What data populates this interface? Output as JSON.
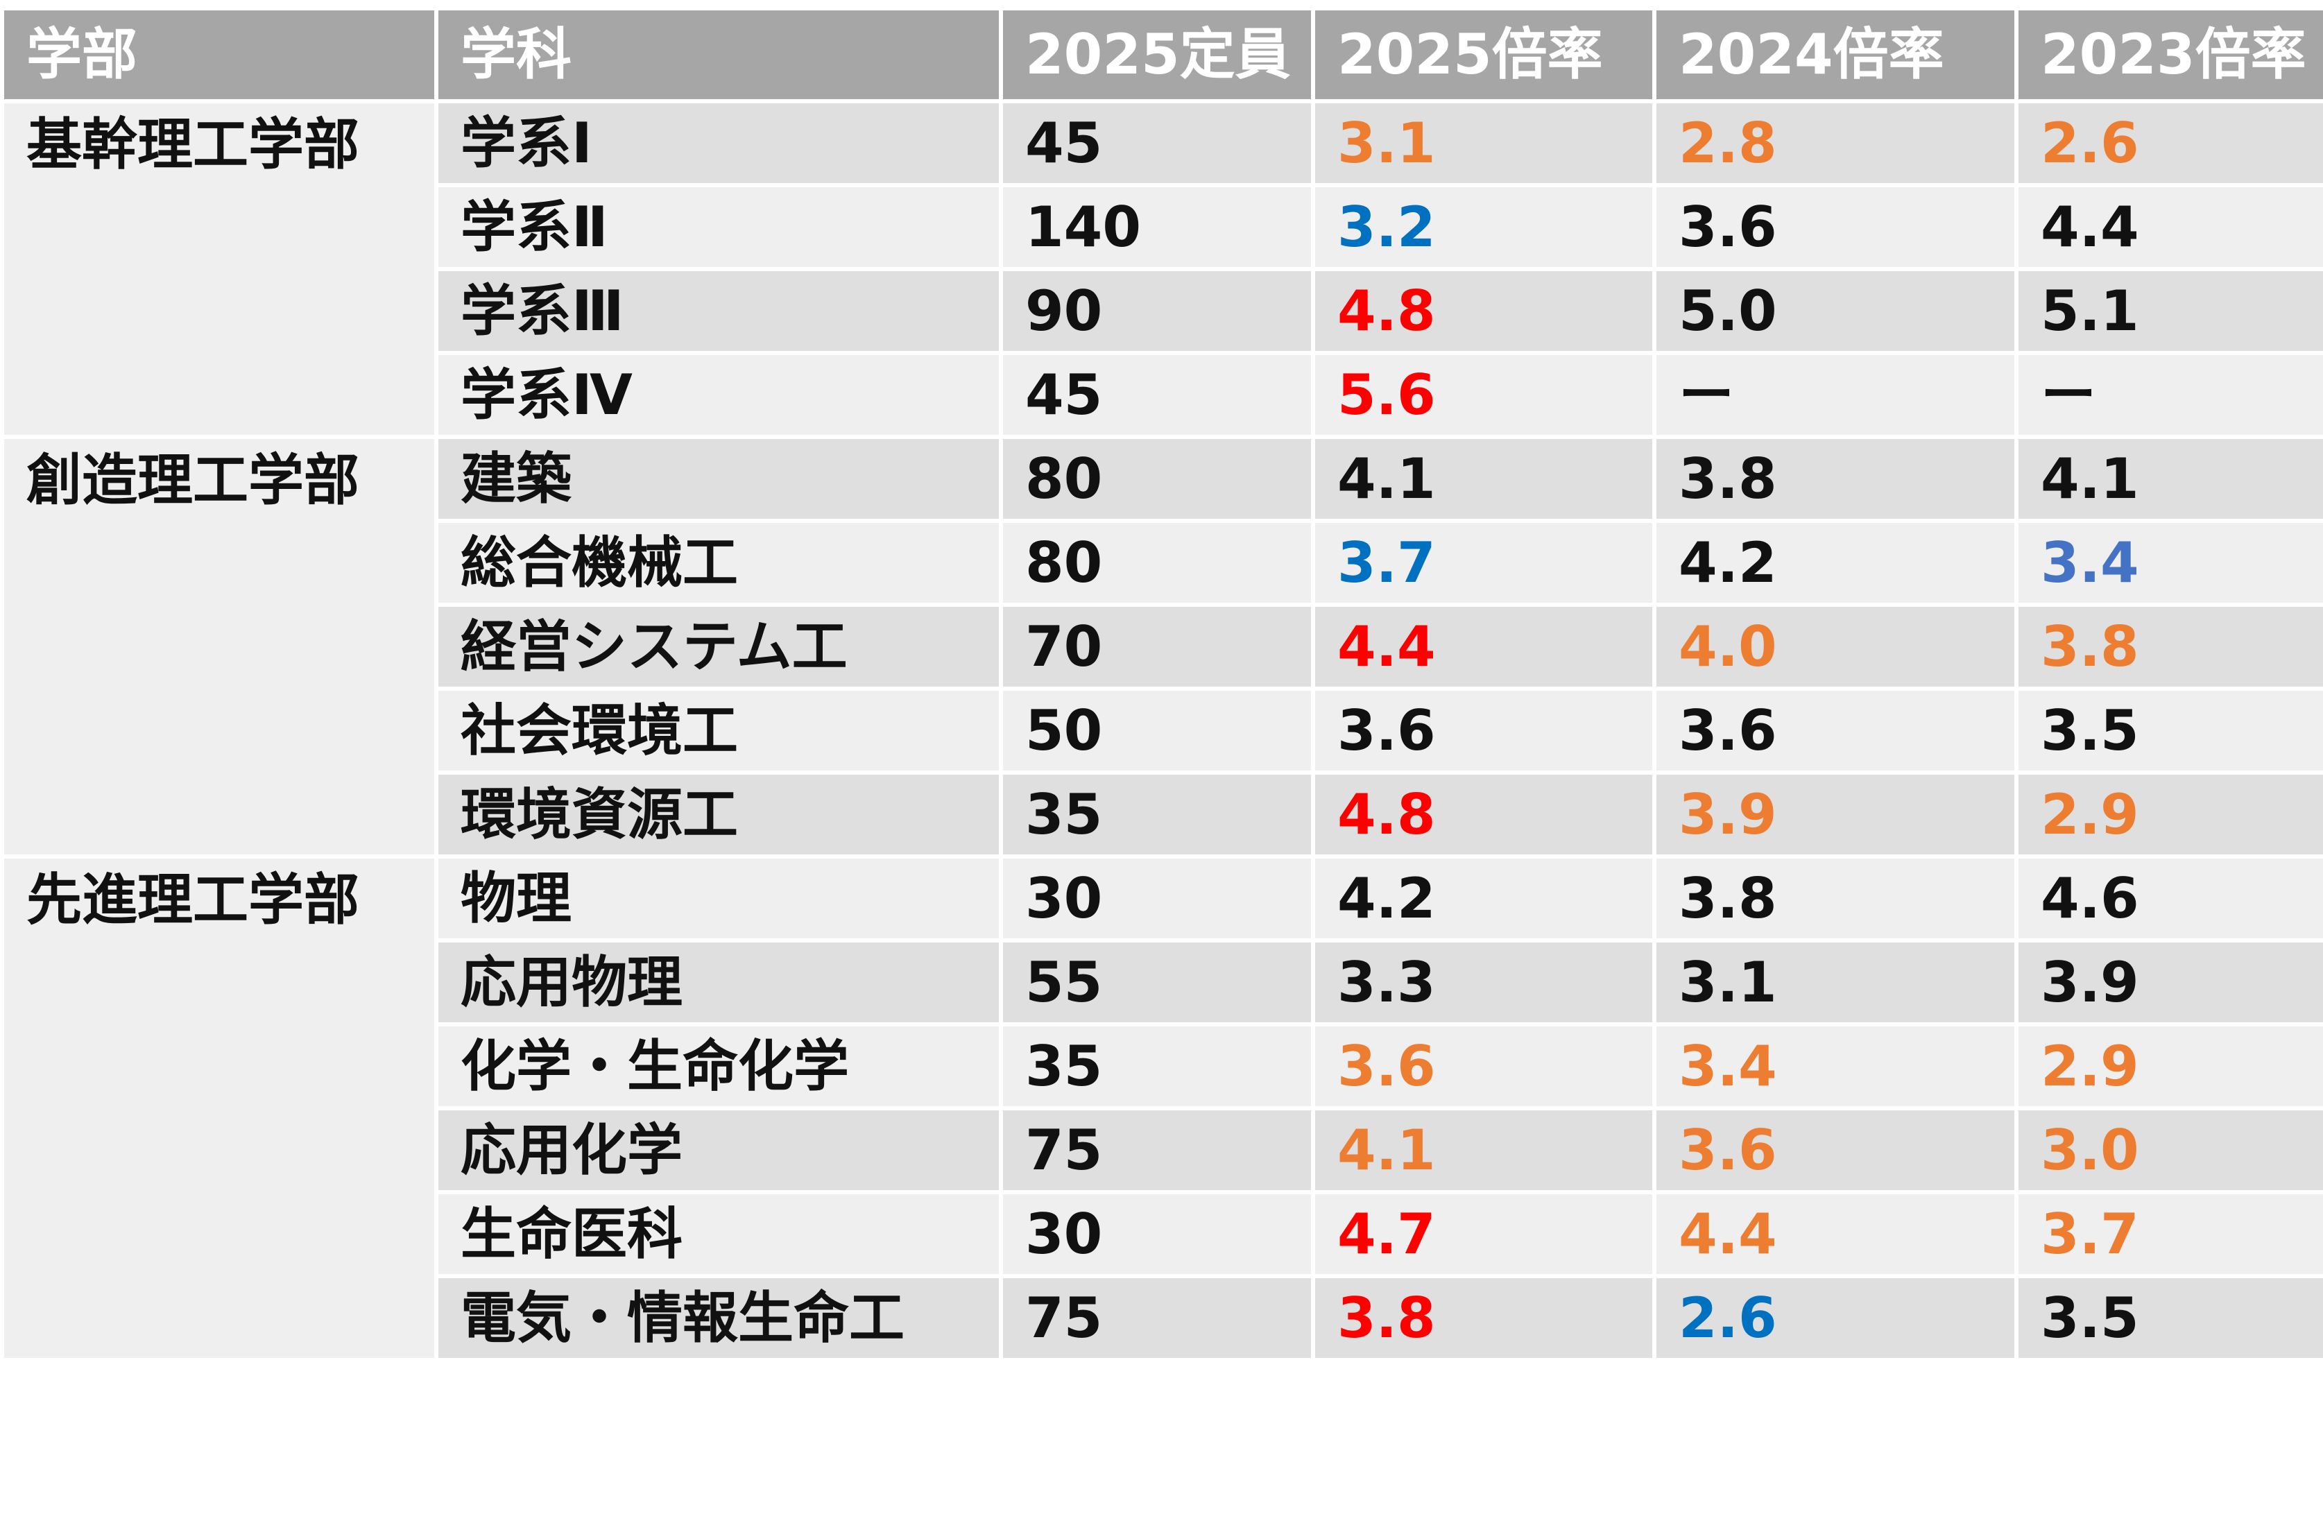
{
  "colors": {
    "header_bg": "#a6a6a6",
    "row_dark": "#dfdfdf",
    "row_light": "#efefef",
    "orange": "#ed7d31",
    "blue": "#0070c0",
    "blue_light": "#4472c4",
    "red": "#ff0000",
    "black": "#111111"
  },
  "table": {
    "headers": [
      "学部",
      "学科",
      "2025定員",
      "2025倍率",
      "2024倍率",
      "2023倍率"
    ],
    "groups": [
      {
        "faculty": "基幹理工学部",
        "rows": [
          {
            "dept": "学系Ⅰ",
            "capacity": "45",
            "r2025": "3.1",
            "c2025": "orange",
            "r2024": "2.8",
            "c2024": "orange",
            "r2023": "2.6",
            "c2023": "orange"
          },
          {
            "dept": "学系Ⅱ",
            "capacity": "140",
            "r2025": "3.2",
            "c2025": "blue",
            "r2024": "3.6",
            "c2024": "black",
            "r2023": "4.4",
            "c2023": "black"
          },
          {
            "dept": "学系Ⅲ",
            "capacity": "90",
            "r2025": "4.8",
            "c2025": "red",
            "r2024": "5.0",
            "c2024": "black",
            "r2023": "5.1",
            "c2023": "black"
          },
          {
            "dept": "学系Ⅳ",
            "capacity": "45",
            "r2025": "5.6",
            "c2025": "red",
            "r2024": "ー",
            "c2024": "black",
            "r2023": "ー",
            "c2023": "black"
          }
        ]
      },
      {
        "faculty": "創造理工学部",
        "rows": [
          {
            "dept": "建築",
            "capacity": "80",
            "r2025": "4.1",
            "c2025": "black",
            "r2024": "3.8",
            "c2024": "black",
            "r2023": "4.1",
            "c2023": "black"
          },
          {
            "dept": "総合機械工",
            "capacity": "80",
            "r2025": "3.7",
            "c2025": "blue",
            "r2024": "4.2",
            "c2024": "black",
            "r2023": "3.4",
            "c2023": "blue_light"
          },
          {
            "dept": "経営システム工",
            "capacity": "70",
            "r2025": "4.4",
            "c2025": "red",
            "r2024": "4.0",
            "c2024": "orange",
            "r2023": "3.8",
            "c2023": "orange"
          },
          {
            "dept": "社会環境工",
            "capacity": "50",
            "r2025": "3.6",
            "c2025": "black",
            "r2024": "3.6",
            "c2024": "black",
            "r2023": "3.5",
            "c2023": "black"
          },
          {
            "dept": "環境資源工",
            "capacity": "35",
            "r2025": "4.8",
            "c2025": "red",
            "r2024": "3.9",
            "c2024": "orange",
            "r2023": "2.9",
            "c2023": "orange"
          }
        ]
      },
      {
        "faculty": "先進理工学部",
        "rows": [
          {
            "dept": "物理",
            "capacity": "30",
            "r2025": "4.2",
            "c2025": "black",
            "r2024": "3.8",
            "c2024": "black",
            "r2023": "4.6",
            "c2023": "black"
          },
          {
            "dept": "応用物理",
            "capacity": "55",
            "r2025": "3.3",
            "c2025": "black",
            "r2024": "3.1",
            "c2024": "black",
            "r2023": "3.9",
            "c2023": "black"
          },
          {
            "dept": "化学・生命化学",
            "capacity": "35",
            "r2025": "3.6",
            "c2025": "orange",
            "r2024": "3.4",
            "c2024": "orange",
            "r2023": "2.9",
            "c2023": "orange"
          },
          {
            "dept": "応用化学",
            "capacity": "75",
            "r2025": "4.1",
            "c2025": "orange",
            "r2024": "3.6",
            "c2024": "orange",
            "r2023": "3.0",
            "c2023": "orange"
          },
          {
            "dept": "生命医科",
            "capacity": "30",
            "r2025": "4.7",
            "c2025": "red",
            "r2024": "4.4",
            "c2024": "orange",
            "r2023": "3.7",
            "c2023": "orange"
          },
          {
            "dept": "電気・情報生命工",
            "capacity": "75",
            "r2025": "3.8",
            "c2025": "red",
            "r2024": "2.6",
            "c2024": "blue",
            "r2023": "3.5",
            "c2023": "black"
          }
        ]
      }
    ]
  }
}
